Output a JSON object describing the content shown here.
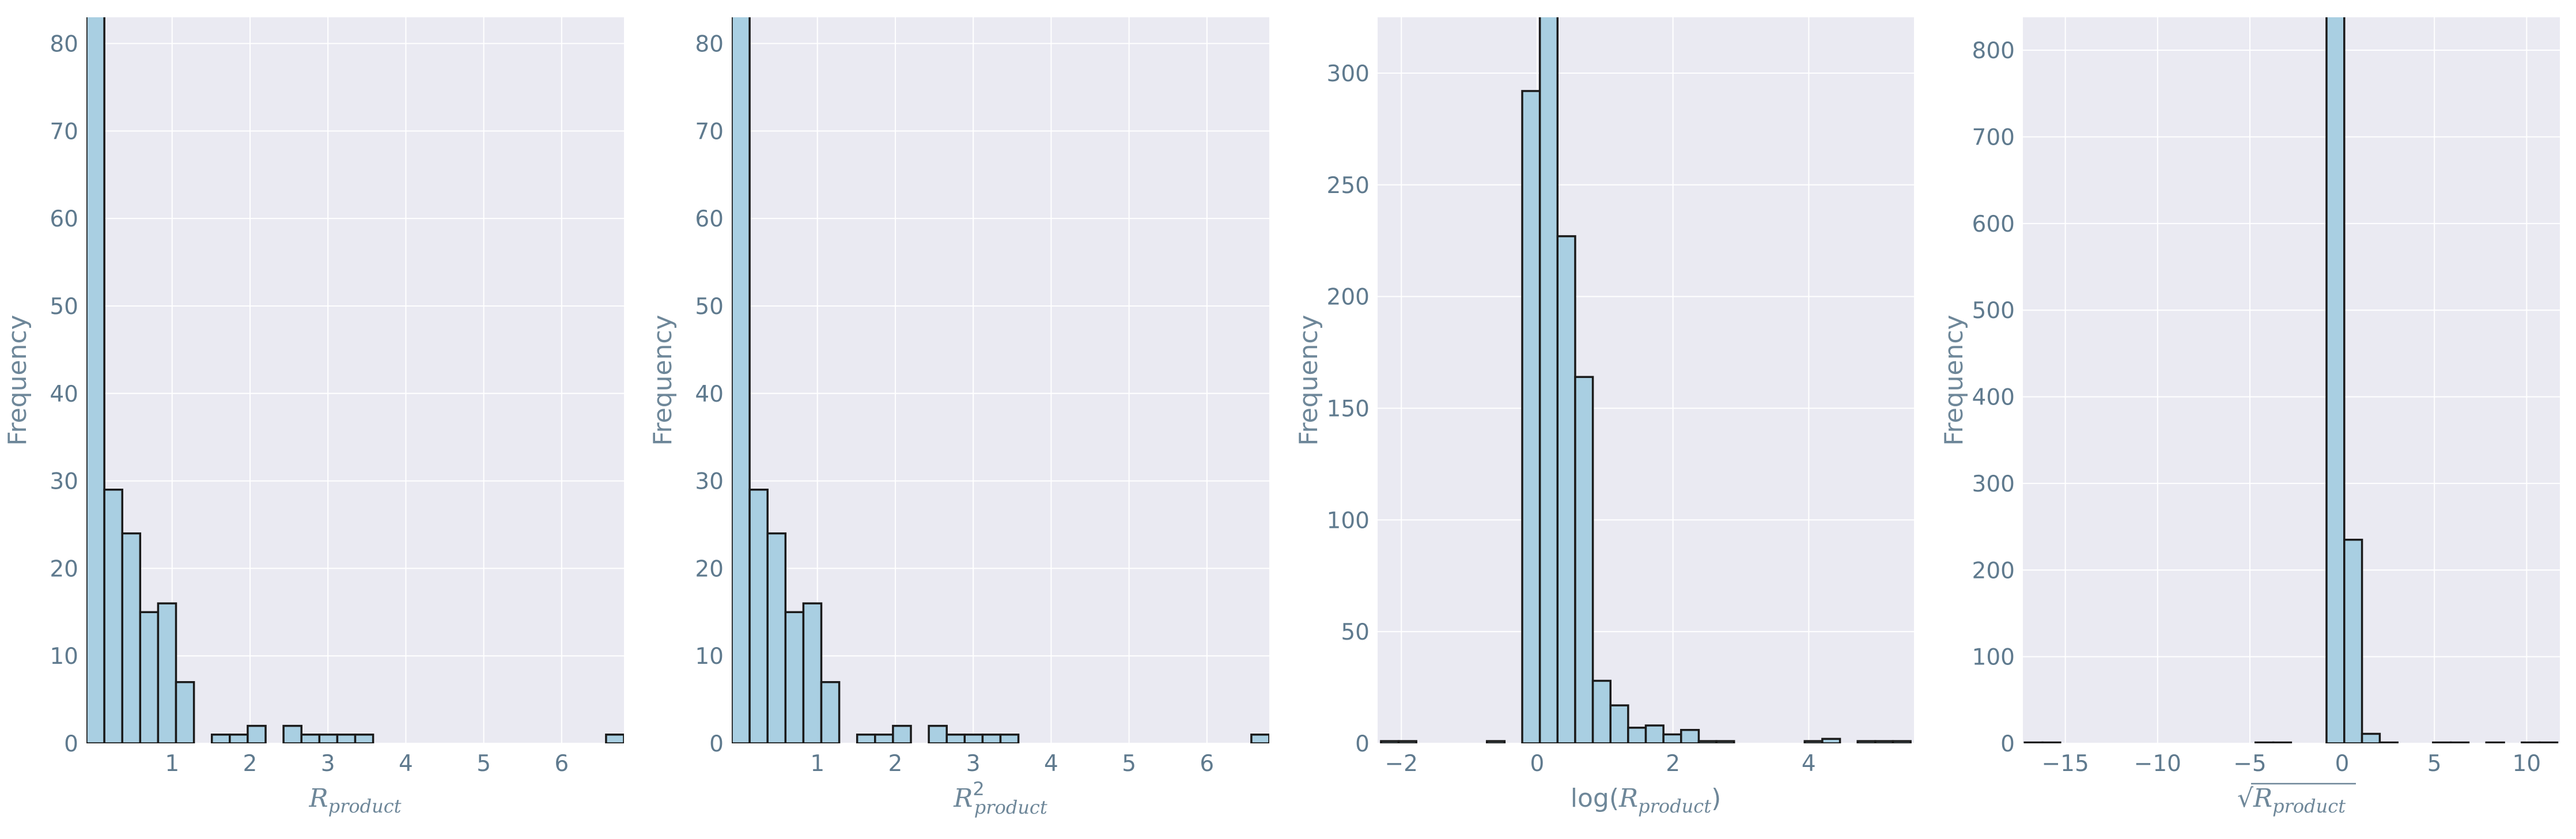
{
  "figure": {
    "style": {
      "plot_bg": "#eaeaf2",
      "grid": "#ffffff",
      "bar_fill": "#a9cfe2",
      "bar_edge": "#1a1a1a",
      "text": "#6e8799"
    }
  },
  "chart_data": [
    {
      "type": "bar",
      "xlabel": {
        "base": "R",
        "sub": "product",
        "sup": ""
      },
      "ylabel": "Frequency",
      "xlim": [
        -0.1,
        6.8
      ],
      "ylim": [
        0,
        83
      ],
      "xticks": [
        1,
        2,
        3,
        4,
        5,
        6
      ],
      "yticks": [
        0,
        10,
        20,
        30,
        40,
        50,
        60,
        70,
        80
      ],
      "bin_start": -0.1,
      "bin_width": 0.23,
      "counts": [
        84,
        29,
        24,
        15,
        16,
        7,
        0,
        1,
        1,
        2,
        0,
        2,
        1,
        1,
        1,
        1,
        0,
        0,
        0,
        0,
        0,
        0,
        0,
        0,
        0,
        0,
        0,
        0,
        0,
        1
      ],
      "grid": true,
      "legend": false
    },
    {
      "type": "bar",
      "xlabel": {
        "base": "R",
        "sub": "product",
        "sup": "2"
      },
      "ylabel": "Frequency",
      "xlim": [
        -0.1,
        6.8
      ],
      "ylim": [
        0,
        83
      ],
      "xticks": [
        1,
        2,
        3,
        4,
        5,
        6
      ],
      "yticks": [
        0,
        10,
        20,
        30,
        40,
        50,
        60,
        70,
        80
      ],
      "bin_start": -0.1,
      "bin_width": 0.23,
      "counts": [
        84,
        29,
        24,
        15,
        16,
        7,
        0,
        1,
        1,
        2,
        0,
        2,
        1,
        1,
        1,
        1,
        0,
        0,
        0,
        0,
        0,
        0,
        0,
        0,
        0,
        0,
        0,
        0,
        0,
        1
      ],
      "grid": true,
      "legend": false
    },
    {
      "type": "bar",
      "xlabel": {
        "pre": "log(",
        "base": "R",
        "sub": "product",
        "post": ")"
      },
      "ylabel": "Frequency",
      "xlim": [
        -2.35,
        5.55
      ],
      "ylim": [
        0,
        325
      ],
      "xticks": [
        -2,
        0,
        2,
        4
      ],
      "yticks": [
        0,
        50,
        100,
        150,
        200,
        250,
        300
      ],
      "bin_start": -2.3,
      "bin_width": 0.26,
      "counts": [
        1,
        1,
        0,
        0,
        0,
        0,
        1,
        0,
        292,
        330,
        227,
        164,
        28,
        17,
        7,
        8,
        4,
        6,
        1,
        1,
        0,
        0,
        0,
        0,
        1,
        2,
        0,
        1,
        1,
        1
      ],
      "grid": true,
      "legend": false
    },
    {
      "type": "bar",
      "xlabel": {
        "sqrt": true,
        "base": "R",
        "sub": "product"
      },
      "ylabel": "Frequency",
      "xlim": [
        -17.3,
        11.8
      ],
      "ylim": [
        0,
        838
      ],
      "xticks": [
        -15,
        -10,
        -5,
        0,
        5,
        10
      ],
      "yticks": [
        0,
        100,
        200,
        300,
        400,
        500,
        600,
        700,
        800
      ],
      "bin_start": -17.2,
      "bin_width": 0.962,
      "counts": [
        1,
        1,
        0,
        0,
        0,
        0,
        0,
        0,
        0,
        0,
        0,
        0,
        0,
        1,
        1,
        0,
        0,
        850,
        235,
        11,
        1,
        0,
        0,
        1,
        1,
        0,
        1,
        0,
        1,
        1
      ],
      "grid": true,
      "legend": false
    }
  ]
}
